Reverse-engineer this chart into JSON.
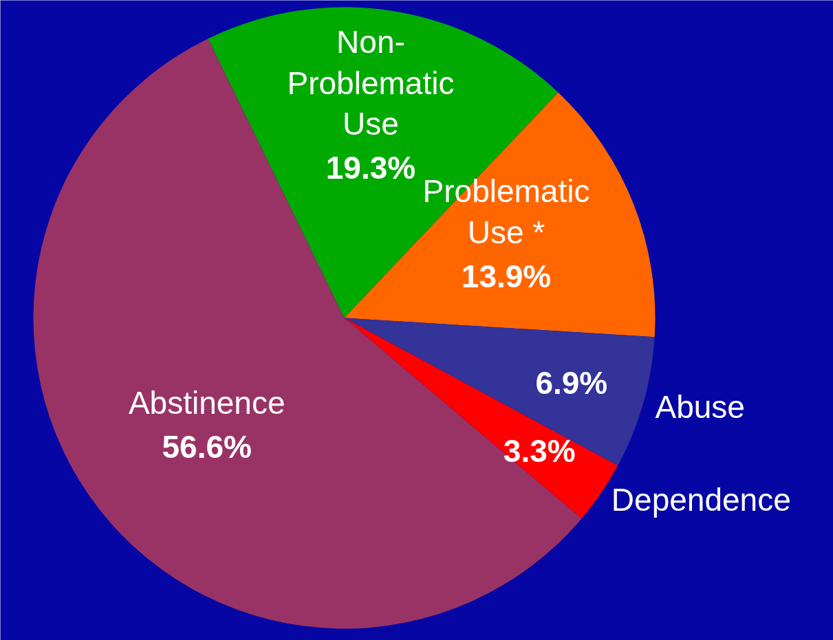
{
  "chart_data": {
    "type": "pie",
    "categories": [
      "Non-Problematic Use",
      "Problematic Use *",
      "Abuse",
      "Dependence",
      "Abstinence"
    ],
    "values": [
      19.3,
      13.9,
      6.9,
      3.3,
      56.6
    ],
    "colors": [
      "#00aa00",
      "#ff6600",
      "#333399",
      "#ff0000",
      "#993366"
    ],
    "value_labels": [
      "19.3%",
      "13.9%",
      "6.9%",
      "3.3%",
      "56.6%"
    ]
  }
}
